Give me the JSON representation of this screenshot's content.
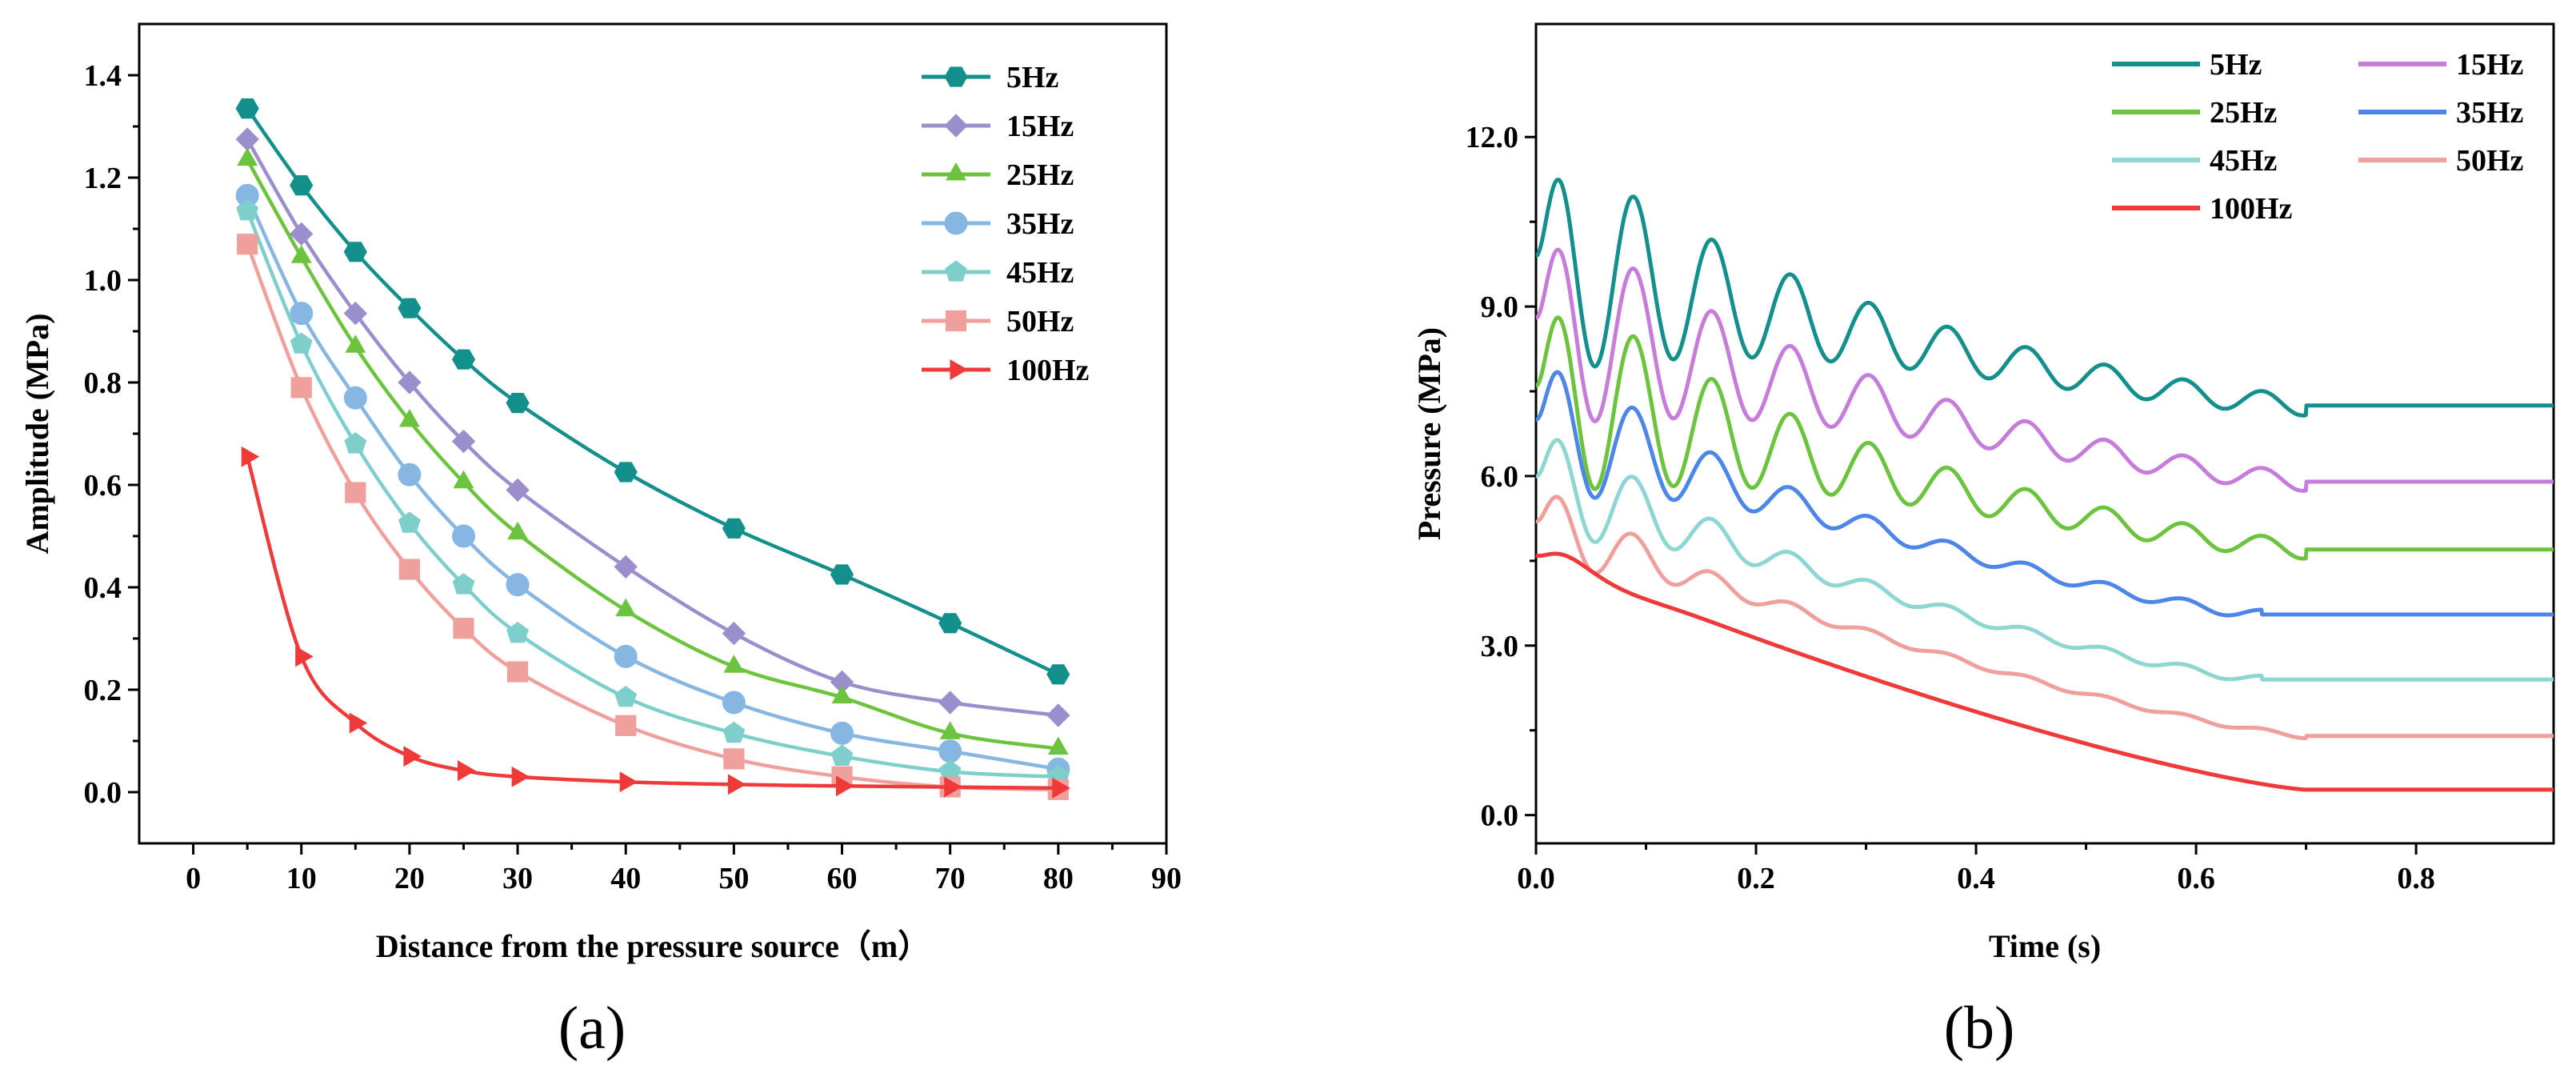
{
  "chart_data": [
    {
      "type": "line",
      "panel_label": "(a)",
      "title": "",
      "xlabel": "Distance from the pressure source（m）",
      "ylabel": "Amplitude (MPa)",
      "xlim": [
        -5,
        90
      ],
      "ylim": [
        -0.1,
        1.5
      ],
      "xticks": [
        0,
        10,
        20,
        30,
        40,
        50,
        60,
        70,
        80,
        90
      ],
      "yticks": [
        0.0,
        0.2,
        0.4,
        0.6,
        0.8,
        1.0,
        1.2,
        1.4
      ],
      "ytick_labels": [
        "0.0",
        "0.2",
        "0.4",
        "0.6",
        "0.8",
        "1.0",
        "1.2",
        "1.4"
      ],
      "grid": false,
      "legend_position": "top-right",
      "x": [
        5,
        10,
        15,
        20,
        25,
        30,
        40,
        50,
        60,
        70,
        80
      ],
      "series": [
        {
          "name": " 5Hz",
          "color": "#138F8C",
          "marker": "hexagon",
          "values": [
            1.335,
            1.185,
            1.055,
            0.945,
            0.845,
            0.76,
            0.625,
            0.515,
            0.425,
            0.33,
            0.23
          ]
        },
        {
          "name": "15Hz",
          "color": "#9C8ECC",
          "marker": "diamond",
          "values": [
            1.275,
            1.09,
            0.935,
            0.8,
            0.685,
            0.59,
            0.44,
            0.31,
            0.215,
            0.175,
            0.15
          ]
        },
        {
          "name": "25Hz",
          "color": "#6CC43E",
          "marker": "triangle",
          "values": [
            1.235,
            1.045,
            0.87,
            0.725,
            0.605,
            0.505,
            0.355,
            0.245,
            0.185,
            0.115,
            0.085
          ]
        },
        {
          "name": "35Hz",
          "color": "#86B6E2",
          "marker": "circle",
          "values": [
            1.165,
            0.935,
            0.77,
            0.62,
            0.5,
            0.405,
            0.265,
            0.175,
            0.115,
            0.08,
            0.045
          ]
        },
        {
          "name": "45Hz",
          "color": "#7ECFCB",
          "marker": "pentagon",
          "values": [
            1.135,
            0.875,
            0.68,
            0.525,
            0.405,
            0.31,
            0.185,
            0.115,
            0.07,
            0.04,
            0.03
          ]
        },
        {
          "name": "50Hz",
          "color": "#EFA09C",
          "marker": "square",
          "values": [
            1.07,
            0.79,
            0.585,
            0.435,
            0.32,
            0.235,
            0.13,
            0.065,
            0.03,
            0.01,
            0.005
          ]
        },
        {
          "name": "100Hz",
          "color": "#F03A3A",
          "marker": "triangle-right",
          "values": [
            0.655,
            0.265,
            0.135,
            0.07,
            0.042,
            0.03,
            0.02,
            0.015,
            0.012,
            0.01,
            0.008
          ]
        }
      ]
    },
    {
      "type": "line",
      "panel_label": "(b)",
      "title": "",
      "xlabel": "Time (s)",
      "ylabel": "Pressure (MPa)",
      "xlim": [
        0,
        0.925
      ],
      "ylim": [
        -0.5,
        14.0
      ],
      "xticks": [
        0.0,
        0.2,
        0.4,
        0.6,
        0.8
      ],
      "xtick_labels": [
        "0.0",
        "0.2",
        "0.4",
        "0.6",
        "0.8"
      ],
      "yticks": [
        0.0,
        3.0,
        6.0,
        9.0,
        12.0
      ],
      "ytick_labels": [
        "0.0",
        "3.0",
        "6.0",
        "9.0",
        "12.0"
      ],
      "grid": false,
      "legend_position": "top-right",
      "series": [
        {
          "name": "5Hz",
          "color": "#138F8C",
          "start": 9.9,
          "end": 7.25,
          "amplitude": 2.2,
          "frequency": 14,
          "decay": 5.5,
          "ring_end": 0.7,
          "amp_floor": 0.06
        },
        {
          "name": "15Hz",
          "color": "#C67DDA",
          "start": 8.8,
          "end": 5.9,
          "amplitude": 2.0,
          "frequency": 14,
          "decay": 5.5,
          "ring_end": 0.7,
          "amp_floor": 0.06
        },
        {
          "name": "25Hz",
          "color": "#6CC43E",
          "start": 7.6,
          "end": 4.7,
          "amplitude": 2.0,
          "frequency": 14,
          "decay": 5.5,
          "ring_end": 0.7,
          "amp_floor": 0.06
        },
        {
          "name": "35Hz",
          "color": "#4C86E8",
          "start": 7.0,
          "end": 3.55,
          "amplitude": 1.6,
          "frequency": 14,
          "decay": 9.0,
          "ring_end": 0.66,
          "amp_floor": 0.05
        },
        {
          "name": "45Hz",
          "color": "#8ED6D2",
          "start": 6.0,
          "end": 2.4,
          "amplitude": 1.3,
          "frequency": 14,
          "decay": 10.0,
          "ring_end": 0.66,
          "amp_floor": 0.05
        },
        {
          "name": "50Hz",
          "color": "#EFA09C",
          "start": 5.2,
          "end": 1.4,
          "amplitude": 1.0,
          "frequency": 14,
          "decay": 12.0,
          "ring_end": 0.7,
          "amp_floor": 0.04
        },
        {
          "name": "100Hz",
          "color": "#F03A3A",
          "start": 4.6,
          "end": 0.45,
          "amplitude": 0.6,
          "frequency": 7,
          "decay": 30.0,
          "ring_end": 0.7,
          "amp_floor": 0.0
        }
      ]
    }
  ]
}
